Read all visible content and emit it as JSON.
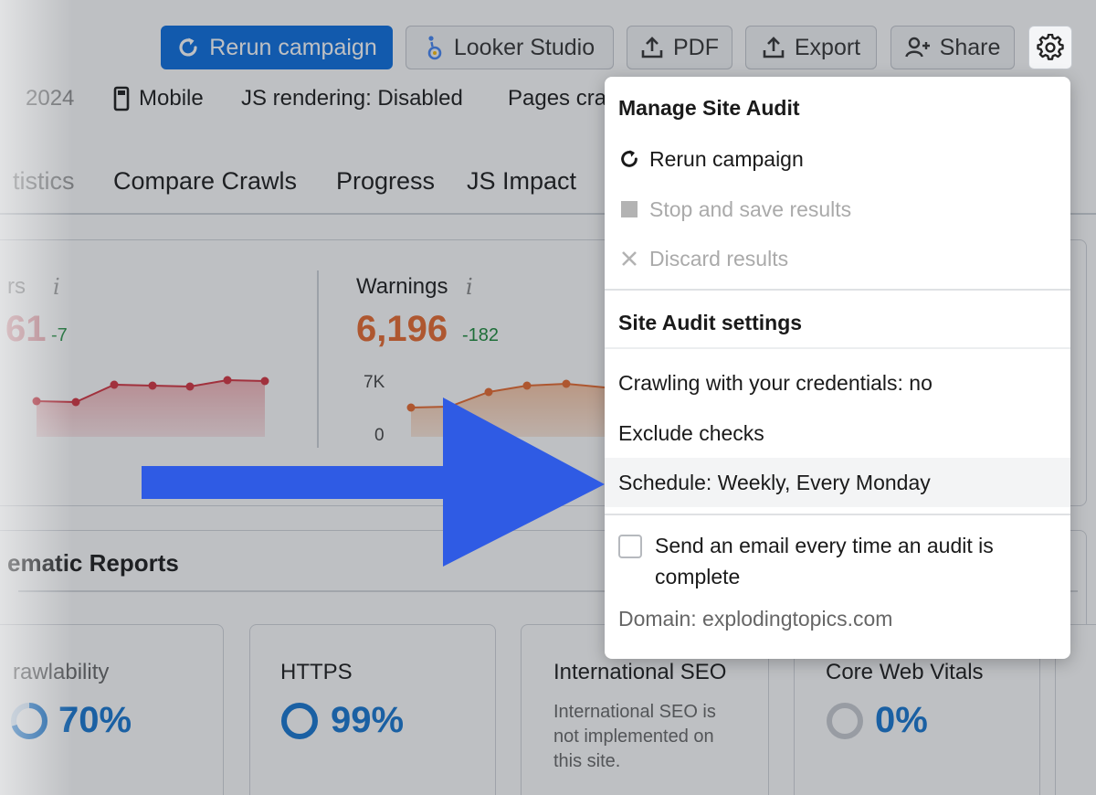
{
  "colors": {
    "primary": "#0a6de0",
    "errors_red": "#d6333f",
    "warnings_orange": "#e8692d",
    "delta_green": "#1b8a3a",
    "arrow_blue": "#2f5be4",
    "percent_blue": "#1576d2"
  },
  "toolbar": {
    "rerun": "Rerun campaign",
    "looker": "Looker Studio",
    "pdf": "PDF",
    "export": "Export",
    "share": "Share",
    "settings_icon": "gear-icon"
  },
  "meta": {
    "year": "2024",
    "device": "Mobile",
    "js_rendering": "JS rendering: Disabled",
    "pages": "Pages cra"
  },
  "tabs": [
    "tistics",
    "Compare Crawls",
    "Progress",
    "JS Impact"
  ],
  "stats": {
    "errors": {
      "label": "rs",
      "value": "61",
      "delta": "-7"
    },
    "warnings": {
      "label": "Warnings",
      "value": "6,196",
      "delta": "-182",
      "axis_top": "7K",
      "axis_bottom": "0"
    }
  },
  "thematic": {
    "title": "ematic Reports",
    "reports": [
      {
        "name": "Crawlability",
        "display_name": "rawlability",
        "percent": "70%"
      },
      {
        "name": "HTTPS",
        "display_name": "HTTPS",
        "percent": "99%"
      },
      {
        "name": "International SEO",
        "display_name": "International SEO",
        "note": "International SEO is not implemented on this site."
      },
      {
        "name": "Core Web Vitals",
        "display_name": "Core Web Vitals",
        "percent": "0%"
      }
    ]
  },
  "dropdown": {
    "manage_header": "Manage Site Audit",
    "rerun": "Rerun campaign",
    "stop": "Stop and save results",
    "discard": "Discard results",
    "settings_header": "Site Audit settings",
    "credentials": "Crawling with your credentials: no",
    "exclude": "Exclude checks",
    "schedule": "Schedule: Weekly, Every Monday",
    "email_label": "Send an email every time an audit is complete",
    "email_checked": false,
    "domain": "Domain: explodingtopics.com"
  }
}
